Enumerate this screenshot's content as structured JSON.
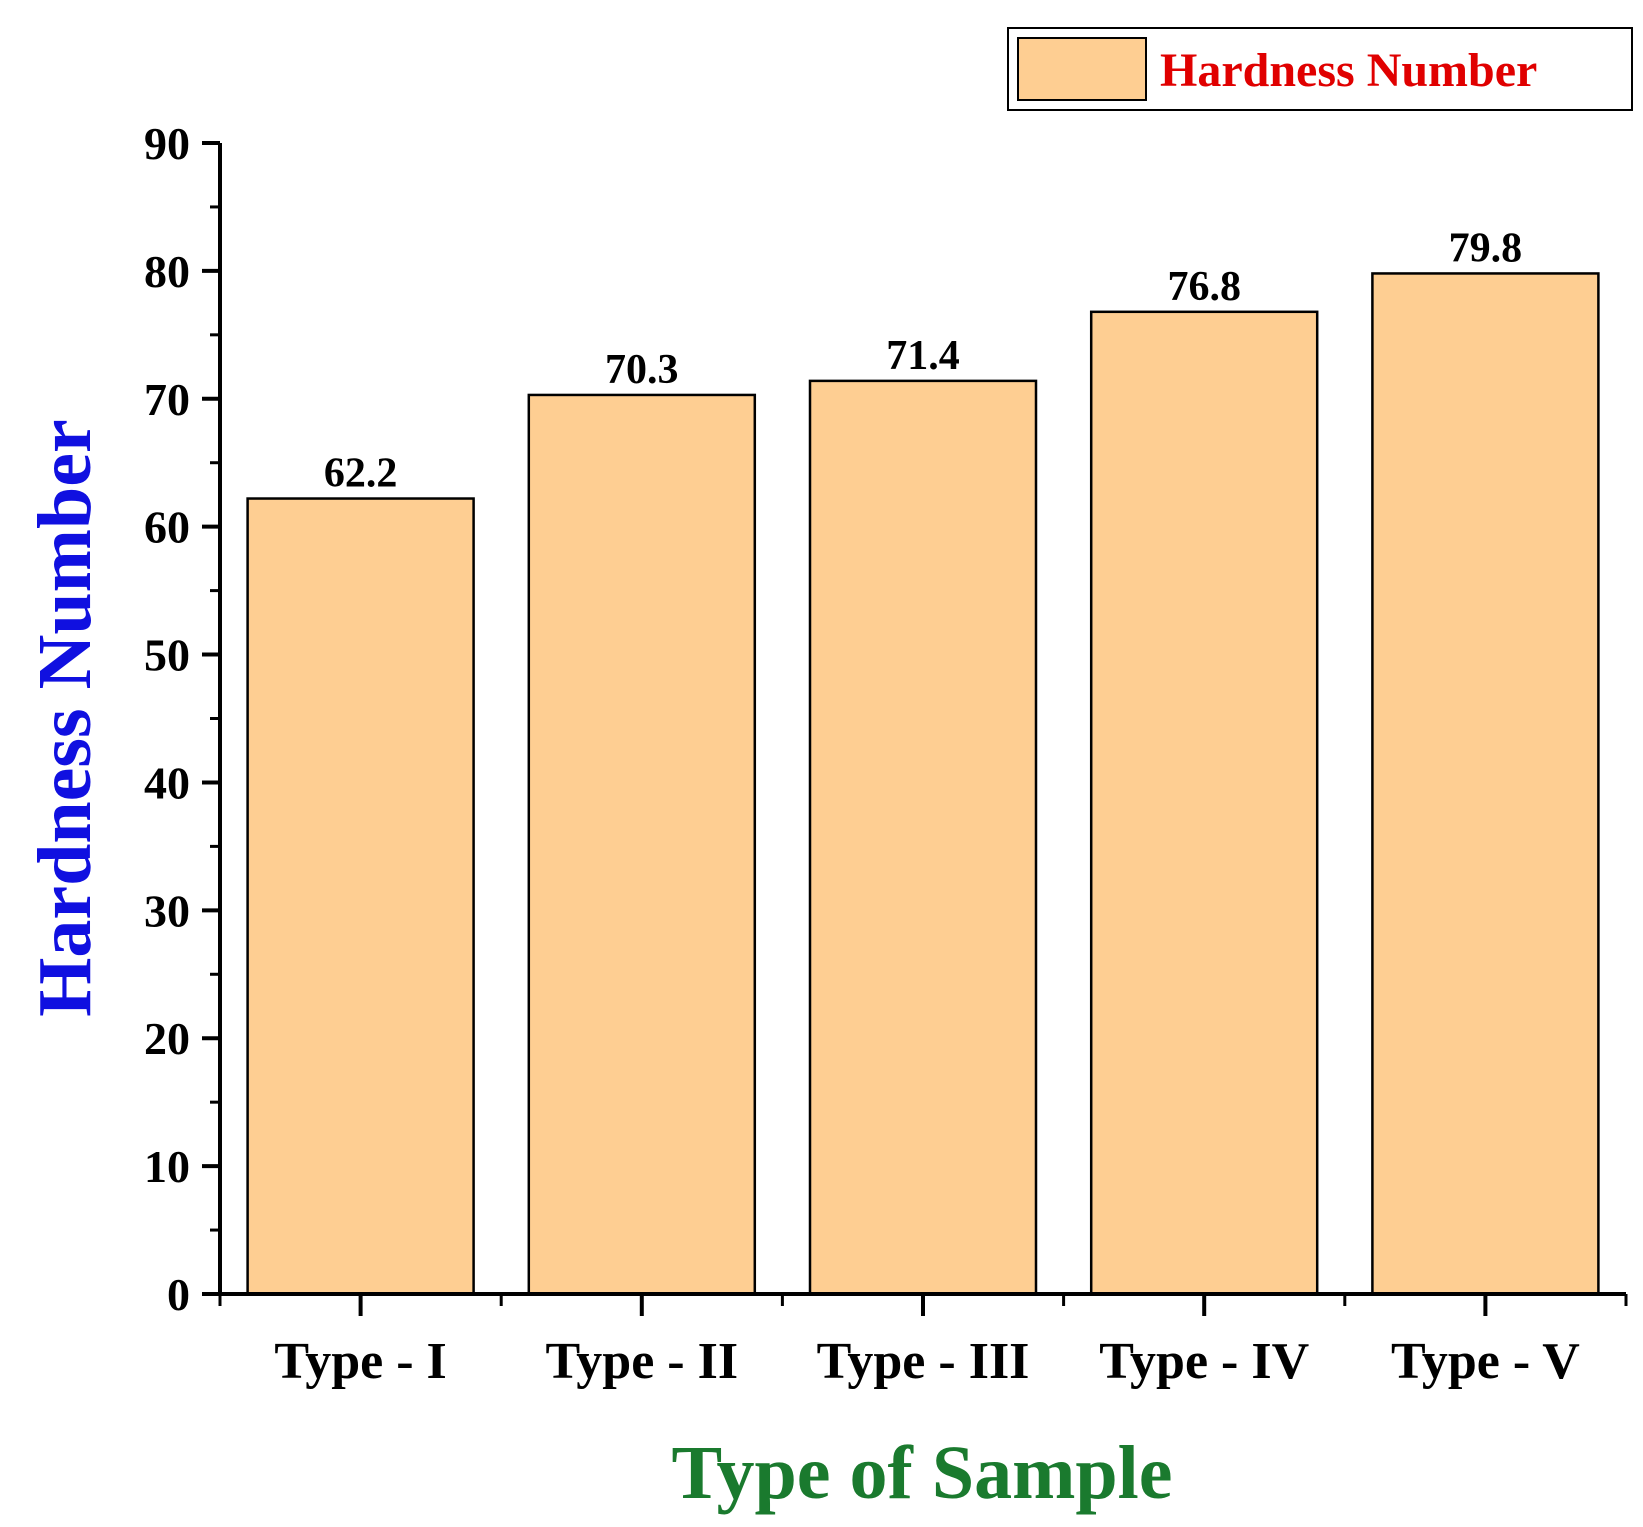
{
  "chart_data": {
    "type": "bar",
    "categories": [
      "Type - I",
      "Type - II",
      "Type - III",
      "Type - IV",
      "Type - V"
    ],
    "series": [
      {
        "name": "Hardness Number",
        "values": [
          62.2,
          70.3,
          71.4,
          76.8,
          79.8
        ]
      }
    ],
    "value_labels": [
      "62.2",
      "70.3",
      "71.4",
      "76.8",
      "79.8"
    ],
    "xlabel": "Type of Sample",
    "ylabel": "Hardness Number",
    "ylim": [
      0,
      90
    ],
    "yticks": [
      0,
      10,
      20,
      30,
      40,
      50,
      60,
      70,
      80,
      90
    ],
    "grid": false,
    "legend_position": "top-right",
    "colors": {
      "bar_fill": "#FECE92",
      "bar_stroke": "#000000",
      "xlabel": "#1A7A2E",
      "ylabel": "#1010E0",
      "legend_text": "#E00000"
    }
  }
}
